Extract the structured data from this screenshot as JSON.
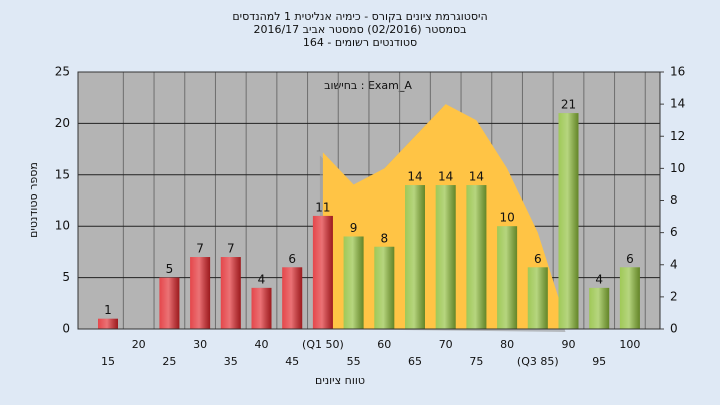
{
  "chart_data": {
    "type": "bar",
    "title": [
      "היסטוגרמת ציונים בקורס - כימיה אנליטית 1 למהנדסים",
      "בסמסטר  (02/2016)  סמסטר אביב 2016/17",
      "סטודנטים רשומים - 164"
    ],
    "annotation": "בחישוב : Exam_A",
    "x_label": "טווח ציונים",
    "y_label": "מספר סטודנטים",
    "categories": [
      "15",
      "20",
      "25",
      "30",
      "35",
      "40",
      "45",
      "(Q1 50)",
      "55",
      "60",
      "65",
      "70",
      "75",
      "80",
      "(Q3 85)",
      "90",
      "95",
      "100"
    ],
    "values": [
      1,
      0,
      5,
      7,
      7,
      4,
      6,
      11,
      9,
      8,
      14,
      14,
      14,
      10,
      6,
      21,
      4,
      6
    ],
    "colors": [
      "#e0262b",
      "#e0262b",
      "#e0262b",
      "#e0262b",
      "#e0262b",
      "#e0262b",
      "#e0262b",
      "#e0262b",
      "#8fbf3a",
      "#8fbf3a",
      "#8fbf3a",
      "#8fbf3a",
      "#8fbf3a",
      "#8fbf3a",
      "#8fbf3a",
      "#8fbf3a",
      "#8fbf3a",
      "#8fbf3a"
    ],
    "area": {
      "axis": "y2",
      "color": "#ffc445",
      "values": [
        null,
        null,
        null,
        null,
        null,
        null,
        null,
        11,
        9,
        10,
        12,
        14,
        13,
        10,
        6,
        0,
        null,
        null
      ]
    },
    "ylim": [
      0,
      25
    ],
    "yticks": [
      0,
      5,
      10,
      15,
      20,
      25
    ],
    "y2lim": [
      0,
      16
    ],
    "y2ticks": [
      0,
      2,
      4,
      6,
      8,
      10,
      12,
      14,
      16
    ],
    "grid": true
  }
}
